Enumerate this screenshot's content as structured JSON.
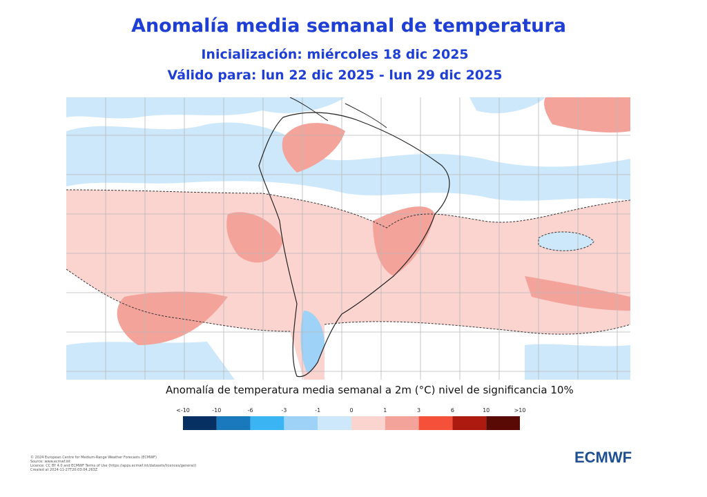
{
  "header": {
    "title": "Anomalía  media semanal de temperatura",
    "initialization": "Inicialización: miércoles 18 dic 2025",
    "valid": "Válido para: lun 22 dic 2025 - lun 29 dic 2025"
  },
  "map": {
    "caption": "Anomalía de temperatura media semanal a 2m (°C) nivel de significancia 10%"
  },
  "colorbar": {
    "labels": [
      "<-10",
      "-10",
      "-6",
      "-3",
      "-1",
      "0",
      "1",
      "3",
      "6",
      "10",
      ">10"
    ],
    "colors": [
      "#053061",
      "#1a78bd",
      "#3bb4f4",
      "#9fd2f7",
      "#cde8fb",
      "#fbd3cf",
      "#f4a39b",
      "#f4503a",
      "#ad1a10",
      "#5a0a05"
    ]
  },
  "footer": {
    "lines": [
      "© 2024 European Centre for Medium-Range Weather Forecasts (ECMWF)",
      "Source: www.ecmwf.int",
      "Licence: CC BY 4.0 and ECMWF Terms of Use (https://apps.ecmwf.int/datasets/licences/general/)",
      "Created at 2024-11-27T20:03:04.263Z"
    ],
    "logo": "ECMWF"
  }
}
